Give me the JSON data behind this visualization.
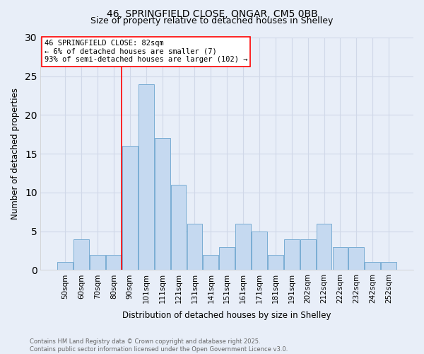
{
  "title_line1": "46, SPRINGFIELD CLOSE, ONGAR, CM5 0BB",
  "title_line2": "Size of property relative to detached houses in Shelley",
  "xlabel": "Distribution of detached houses by size in Shelley",
  "ylabel": "Number of detached properties",
  "bin_labels": [
    "50sqm",
    "60sqm",
    "70sqm",
    "80sqm",
    "90sqm",
    "101sqm",
    "111sqm",
    "121sqm",
    "131sqm",
    "141sqm",
    "151sqm",
    "161sqm",
    "171sqm",
    "181sqm",
    "191sqm",
    "202sqm",
    "212sqm",
    "222sqm",
    "232sqm",
    "242sqm",
    "252sqm"
  ],
  "bin_values": [
    1,
    4,
    2,
    2,
    16,
    24,
    17,
    11,
    6,
    2,
    3,
    6,
    5,
    2,
    4,
    4,
    6,
    3,
    3,
    1,
    1
  ],
  "bar_color": "#c5d9f0",
  "bar_edge_color": "#7aadd4",
  "red_line_index": 3.5,
  "annotation_text": "46 SPRINGFIELD CLOSE: 82sqm\n← 6% of detached houses are smaller (7)\n93% of semi-detached houses are larger (102) →",
  "ylim": [
    0,
    30
  ],
  "yticks": [
    0,
    5,
    10,
    15,
    20,
    25,
    30
  ],
  "footer_text": "Contains HM Land Registry data © Crown copyright and database right 2025.\nContains public sector information licensed under the Open Government Licence v3.0.",
  "background_color": "#e8eef8"
}
